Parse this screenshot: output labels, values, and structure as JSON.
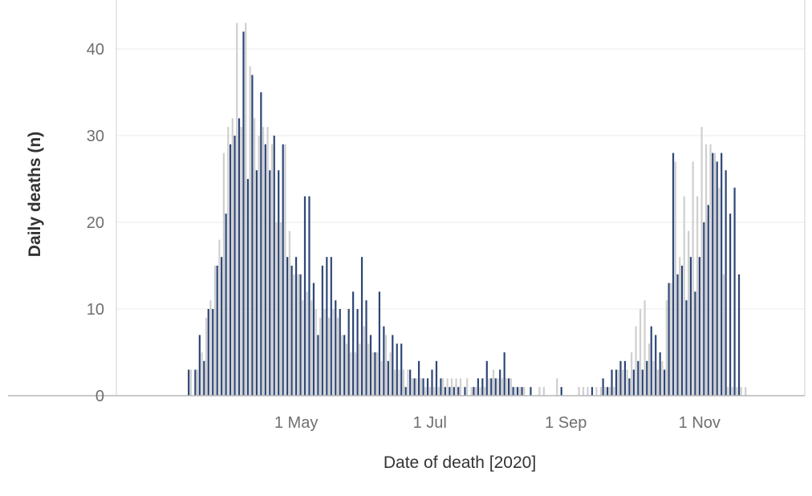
{
  "chart_data": {
    "type": "bar",
    "xlabel": "Date of death [2020]",
    "ylabel": "Daily deaths (n)",
    "x_ticks": [
      {
        "date": "2020-05-01",
        "label": "1 May"
      },
      {
        "date": "2020-07-01",
        "label": "1 Jul"
      },
      {
        "date": "2020-09-01",
        "label": "1 Sep"
      },
      {
        "date": "2020-11-01",
        "label": "1 Nov"
      }
    ],
    "y_ticks": [
      0,
      10,
      20,
      30,
      40
    ],
    "ylim": [
      0,
      45
    ],
    "xlim": [
      "2020-02-09",
      "2020-12-19"
    ],
    "grid": true,
    "series": [
      {
        "color": "#2e4677",
        "x": [
          "2020-03-13",
          "2020-03-16",
          "2020-03-18",
          "2020-03-20",
          "2020-03-22",
          "2020-03-24",
          "2020-03-26",
          "2020-03-28",
          "2020-03-30",
          "2020-04-01",
          "2020-04-03",
          "2020-04-05",
          "2020-04-07",
          "2020-04-09",
          "2020-04-11",
          "2020-04-13",
          "2020-04-15",
          "2020-04-17",
          "2020-04-19",
          "2020-04-21",
          "2020-04-23",
          "2020-04-25",
          "2020-04-27",
          "2020-04-29",
          "2020-05-01",
          "2020-05-03",
          "2020-05-05",
          "2020-05-07",
          "2020-05-09",
          "2020-05-11",
          "2020-05-13",
          "2020-05-15",
          "2020-05-17",
          "2020-05-19",
          "2020-05-21",
          "2020-05-23",
          "2020-05-25",
          "2020-05-27",
          "2020-05-29",
          "2020-05-31",
          "2020-06-02",
          "2020-06-04",
          "2020-06-06",
          "2020-06-08",
          "2020-06-10",
          "2020-06-12",
          "2020-06-14",
          "2020-06-16",
          "2020-06-18",
          "2020-06-20",
          "2020-06-22",
          "2020-06-24",
          "2020-06-26",
          "2020-06-28",
          "2020-06-30",
          "2020-07-02",
          "2020-07-04",
          "2020-07-06",
          "2020-07-08",
          "2020-07-10",
          "2020-07-12",
          "2020-07-14",
          "2020-07-17",
          "2020-07-21",
          "2020-07-23",
          "2020-07-25",
          "2020-07-27",
          "2020-07-29",
          "2020-07-31",
          "2020-08-02",
          "2020-08-04",
          "2020-08-06",
          "2020-08-08",
          "2020-08-10",
          "2020-08-12",
          "2020-08-16",
          "2020-08-30",
          "2020-09-13",
          "2020-09-18",
          "2020-09-20",
          "2020-09-22",
          "2020-09-24",
          "2020-09-26",
          "2020-09-28",
          "2020-09-30",
          "2020-10-02",
          "2020-10-04",
          "2020-10-06",
          "2020-10-08",
          "2020-10-10",
          "2020-10-12",
          "2020-10-14",
          "2020-10-16",
          "2020-10-18",
          "2020-10-20",
          "2020-10-22",
          "2020-10-24",
          "2020-10-26",
          "2020-10-28",
          "2020-10-30",
          "2020-11-01",
          "2020-11-03",
          "2020-11-05",
          "2020-11-07",
          "2020-11-09",
          "2020-11-11",
          "2020-11-13",
          "2020-11-15",
          "2020-11-17",
          "2020-11-19"
        ],
        "values": [
          3,
          3,
          7,
          4,
          10,
          10,
          15,
          16,
          21,
          29,
          30,
          32,
          42,
          25,
          37,
          26,
          35,
          29,
          26,
          30,
          26,
          29,
          16,
          15,
          16,
          14,
          23,
          23,
          13,
          7,
          15,
          16,
          16,
          11,
          10,
          7,
          10,
          12,
          10,
          16,
          11,
          7,
          5,
          12,
          8,
          4,
          7,
          6,
          6,
          1,
          3,
          2,
          4,
          2,
          2,
          3,
          4,
          2,
          1,
          1,
          1,
          1,
          1,
          1,
          2,
          2,
          4,
          2,
          2,
          3,
          5,
          2,
          1,
          1,
          1,
          1,
          1,
          1,
          2,
          1,
          3,
          3,
          4,
          4,
          2,
          3,
          4,
          3,
          4,
          8,
          7,
          5,
          3,
          13,
          28,
          14,
          15,
          11,
          16,
          12,
          16,
          20,
          22,
          28,
          27,
          28,
          26,
          21,
          24,
          14
        ]
      },
      {
        "color": "#cfcfcf",
        "x": [
          "2020-03-14",
          "2020-03-17",
          "2020-03-19",
          "2020-03-21",
          "2020-03-23",
          "2020-03-25",
          "2020-03-27",
          "2020-03-29",
          "2020-03-31",
          "2020-04-02",
          "2020-04-04",
          "2020-04-06",
          "2020-04-08",
          "2020-04-10",
          "2020-04-12",
          "2020-04-14",
          "2020-04-16",
          "2020-04-18",
          "2020-04-20",
          "2020-04-22",
          "2020-04-24",
          "2020-04-26",
          "2020-04-28",
          "2020-04-30",
          "2020-05-02",
          "2020-05-04",
          "2020-05-06",
          "2020-05-08",
          "2020-05-10",
          "2020-05-12",
          "2020-05-14",
          "2020-05-16",
          "2020-05-18",
          "2020-05-20",
          "2020-05-22",
          "2020-05-24",
          "2020-05-26",
          "2020-05-28",
          "2020-05-30",
          "2020-06-01",
          "2020-06-03",
          "2020-06-05",
          "2020-06-07",
          "2020-06-09",
          "2020-06-11",
          "2020-06-13",
          "2020-06-15",
          "2020-06-17",
          "2020-06-19",
          "2020-06-21",
          "2020-06-23",
          "2020-06-25",
          "2020-06-27",
          "2020-06-29",
          "2020-07-01",
          "2020-07-03",
          "2020-07-05",
          "2020-07-07",
          "2020-07-09",
          "2020-07-11",
          "2020-07-13",
          "2020-07-15",
          "2020-07-18",
          "2020-07-20",
          "2020-07-22",
          "2020-07-24",
          "2020-07-26",
          "2020-07-28",
          "2020-07-30",
          "2020-08-01",
          "2020-08-03",
          "2020-08-05",
          "2020-08-07",
          "2020-08-09",
          "2020-08-11",
          "2020-08-13",
          "2020-08-20",
          "2020-08-22",
          "2020-08-28",
          "2020-09-07",
          "2020-09-09",
          "2020-09-11",
          "2020-09-15",
          "2020-09-17",
          "2020-09-19",
          "2020-09-21",
          "2020-09-23",
          "2020-09-25",
          "2020-09-27",
          "2020-09-29",
          "2020-10-01",
          "2020-10-03",
          "2020-10-05",
          "2020-10-07",
          "2020-10-09",
          "2020-10-11",
          "2020-10-13",
          "2020-10-15",
          "2020-10-17",
          "2020-10-19",
          "2020-10-21",
          "2020-10-23",
          "2020-10-25",
          "2020-10-27",
          "2020-10-29",
          "2020-10-31",
          "2020-11-02",
          "2020-11-04",
          "2020-11-06",
          "2020-11-08",
          "2020-11-10",
          "2020-11-12",
          "2020-11-14",
          "2020-11-16",
          "2020-11-18",
          "2020-11-20",
          "2020-11-22"
        ],
        "values": [
          3,
          3,
          5,
          9,
          11,
          15,
          18,
          28,
          31,
          32,
          43,
          31,
          43,
          38,
          32,
          30,
          31,
          31,
          29,
          20,
          20,
          29,
          19,
          14,
          14,
          11,
          12,
          11,
          10,
          9,
          10,
          9,
          10,
          9,
          7,
          6,
          5,
          5,
          6,
          8,
          6,
          5,
          5,
          4,
          7,
          5,
          3,
          3,
          3,
          3,
          2,
          2,
          2,
          1,
          1,
          1,
          1,
          2,
          2,
          2,
          2,
          2,
          2,
          1,
          1,
          1,
          1,
          2,
          3,
          2,
          2,
          2,
          2,
          1,
          1,
          1,
          1,
          1,
          2,
          1,
          1,
          1,
          1,
          1,
          1,
          1,
          1,
          3,
          3,
          3,
          5,
          8,
          10,
          11,
          6,
          4,
          3,
          4,
          11,
          13,
          27,
          16,
          23,
          19,
          27,
          23,
          31,
          29,
          29,
          28,
          24,
          14,
          1,
          1,
          1,
          1,
          1
        ]
      }
    ]
  }
}
